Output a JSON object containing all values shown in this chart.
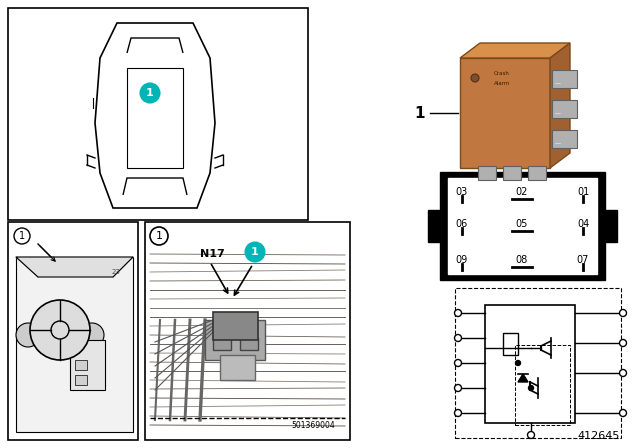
{
  "background_color": "#ffffff",
  "cyan_color": "#00B5B5",
  "part_number": "412645",
  "pin_grid_row1": [
    "03",
    "02",
    "01"
  ],
  "pin_grid_row2": [
    "06",
    "05",
    "04"
  ],
  "pin_grid_row3": [
    "09",
    "08",
    "07"
  ],
  "relay_color": "#C07840",
  "relay_dark": "#8B5A2B",
  "pin_color": "#909090"
}
